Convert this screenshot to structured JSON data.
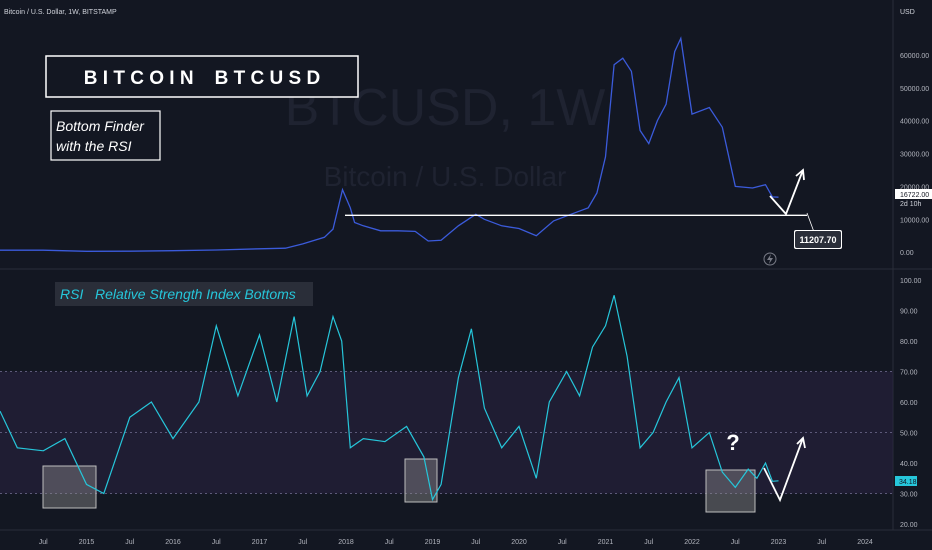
{
  "header": {
    "symbol_line": "Bitcoin / U.S. Dollar, 1W, BITSTAMP",
    "currency": "USD"
  },
  "watermark": {
    "main": "BTCUSD, 1W",
    "sub": "Bitcoin / U.S. Dollar"
  },
  "annotations": {
    "title_box": "B I T C O I N    B T C U S D",
    "subtitle_line1": "Bottom Finder",
    "subtitle_line2": "with the RSI",
    "rsi_label": "RSI   Relative Strength Index Bottoms",
    "question_mark": "?",
    "support_level_label": "11207.70"
  },
  "price_scale": {
    "last_price": "16722.00",
    "countdown": "2d 10h"
  },
  "rsi_scale": {
    "last_value": "34.18"
  },
  "colors": {
    "background": "#131722",
    "price_line": "#3b5bdb",
    "rsi_line": "#26c6da",
    "rsi_band": "#2a2342",
    "annotation": "#ffffff"
  },
  "chart_data": [
    {
      "type": "line",
      "series": [
        {
          "x": [
            2014.0,
            2014.5,
            2015.0,
            2015.5,
            2016.0,
            2016.5,
            2017.0,
            2017.3,
            2017.5,
            2017.75,
            2017.85,
            2017.96,
            2018.05,
            2018.1,
            2018.2,
            2018.4,
            2018.6,
            2018.8,
            2018.95,
            2019.1,
            2019.3,
            2019.5,
            2019.6,
            2019.8,
            2020.0,
            2020.2,
            2020.4,
            2020.6,
            2020.8,
            2020.9,
            2021.0,
            2021.1,
            2021.2,
            2021.3,
            2021.4,
            2021.5,
            2021.6,
            2021.7,
            2021.8,
            2021.87,
            2022.0,
            2022.2,
            2022.35,
            2022.5,
            2022.7,
            2022.85,
            2022.93,
            2023.0
          ],
          "values": [
            600,
            580,
            250,
            270,
            430,
            650,
            1000,
            1200,
            2500,
            4500,
            7000,
            19000,
            13500,
            9000,
            8000,
            6500,
            6500,
            6300,
            3400,
            3600,
            8000,
            11500,
            10000,
            8000,
            7200,
            5000,
            9500,
            11500,
            13500,
            18000,
            29000,
            57000,
            59000,
            55000,
            37000,
            33000,
            40000,
            45000,
            61000,
            65000,
            42000,
            44000,
            38000,
            20000,
            19500,
            20500,
            16800,
            16722
          ]
        }
      ],
      "xticks": [
        "Jul",
        "2015",
        "Jul",
        "2016",
        "Jul",
        "2017",
        "Jul",
        "2018",
        "Jul",
        "2019",
        "Jul",
        "2020",
        "Jul",
        "2021",
        "Jul",
        "2022",
        "Jul",
        "2023",
        "Jul",
        "2024"
      ],
      "yticks": [
        0.0,
        10000.0,
        20000.0,
        30000.0,
        40000.0,
        50000.0,
        60000.0
      ],
      "ylim": [
        -3000,
        70000
      ],
      "support_line": 11207.7,
      "ylabel": "USD"
    },
    {
      "type": "line",
      "series": [
        {
          "x": [
            2014.0,
            2014.2,
            2014.5,
            2014.75,
            2015.0,
            2015.2,
            2015.5,
            2015.75,
            2016.0,
            2016.3,
            2016.5,
            2016.75,
            2017.0,
            2017.2,
            2017.4,
            2017.55,
            2017.7,
            2017.85,
            2017.95,
            2018.05,
            2018.2,
            2018.45,
            2018.7,
            2018.9,
            2019.0,
            2019.1,
            2019.3,
            2019.45,
            2019.6,
            2019.8,
            2020.0,
            2020.2,
            2020.35,
            2020.55,
            2020.7,
            2020.85,
            2021.0,
            2021.1,
            2021.25,
            2021.4,
            2021.55,
            2021.7,
            2021.85,
            2022.0,
            2022.2,
            2022.35,
            2022.5,
            2022.65,
            2022.75,
            2022.85,
            2022.93,
            2023.0
          ],
          "values": [
            57,
            45,
            44,
            48,
            33,
            30,
            55,
            60,
            48,
            60,
            85,
            62,
            82,
            60,
            88,
            62,
            70,
            88,
            80,
            45,
            48,
            47,
            52,
            42,
            28,
            33,
            68,
            84,
            58,
            45,
            52,
            35,
            60,
            70,
            62,
            78,
            85,
            95,
            75,
            45,
            50,
            60,
            68,
            45,
            50,
            37,
            32,
            38,
            35,
            40,
            34,
            34.18
          ]
        }
      ],
      "yticks": [
        20.0,
        30.0,
        40.0,
        50.0,
        60.0,
        70.0,
        80.0,
        90.0,
        100.0
      ],
      "ylim": [
        20,
        100
      ],
      "band": [
        30,
        70
      ]
    }
  ]
}
